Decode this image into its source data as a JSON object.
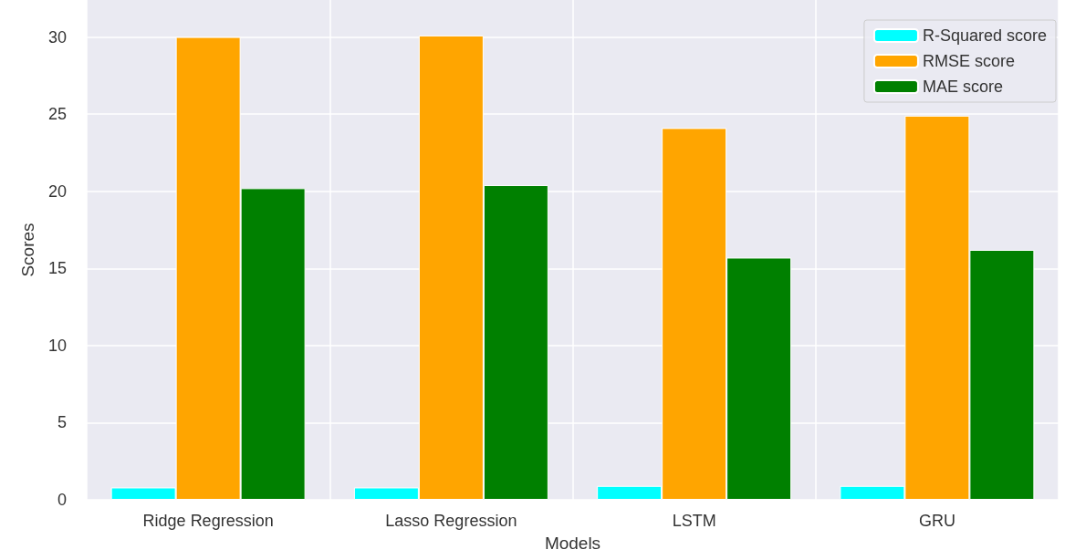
{
  "chart_data": {
    "type": "bar",
    "xlabel": "Models",
    "ylabel": "Scores",
    "categories": [
      "Ridge Regression",
      "Lasso Regression",
      "LSTM",
      "GRU"
    ],
    "series": [
      {
        "name": "R-Squared score",
        "color": "#00ffff",
        "values": [
          0.8,
          0.8,
          0.9,
          0.9
        ]
      },
      {
        "name": "RMSE score",
        "color": "#ffa500",
        "values": [
          30.0,
          30.1,
          24.1,
          24.9
        ]
      },
      {
        "name": "MAE score",
        "color": "#008000",
        "values": [
          20.2,
          20.4,
          15.7,
          16.2
        ]
      }
    ],
    "ylim": [
      0,
      32.4
    ],
    "yticks": [
      0,
      5,
      10,
      15,
      20,
      25,
      30
    ],
    "grid": true,
    "legend": "top right"
  }
}
